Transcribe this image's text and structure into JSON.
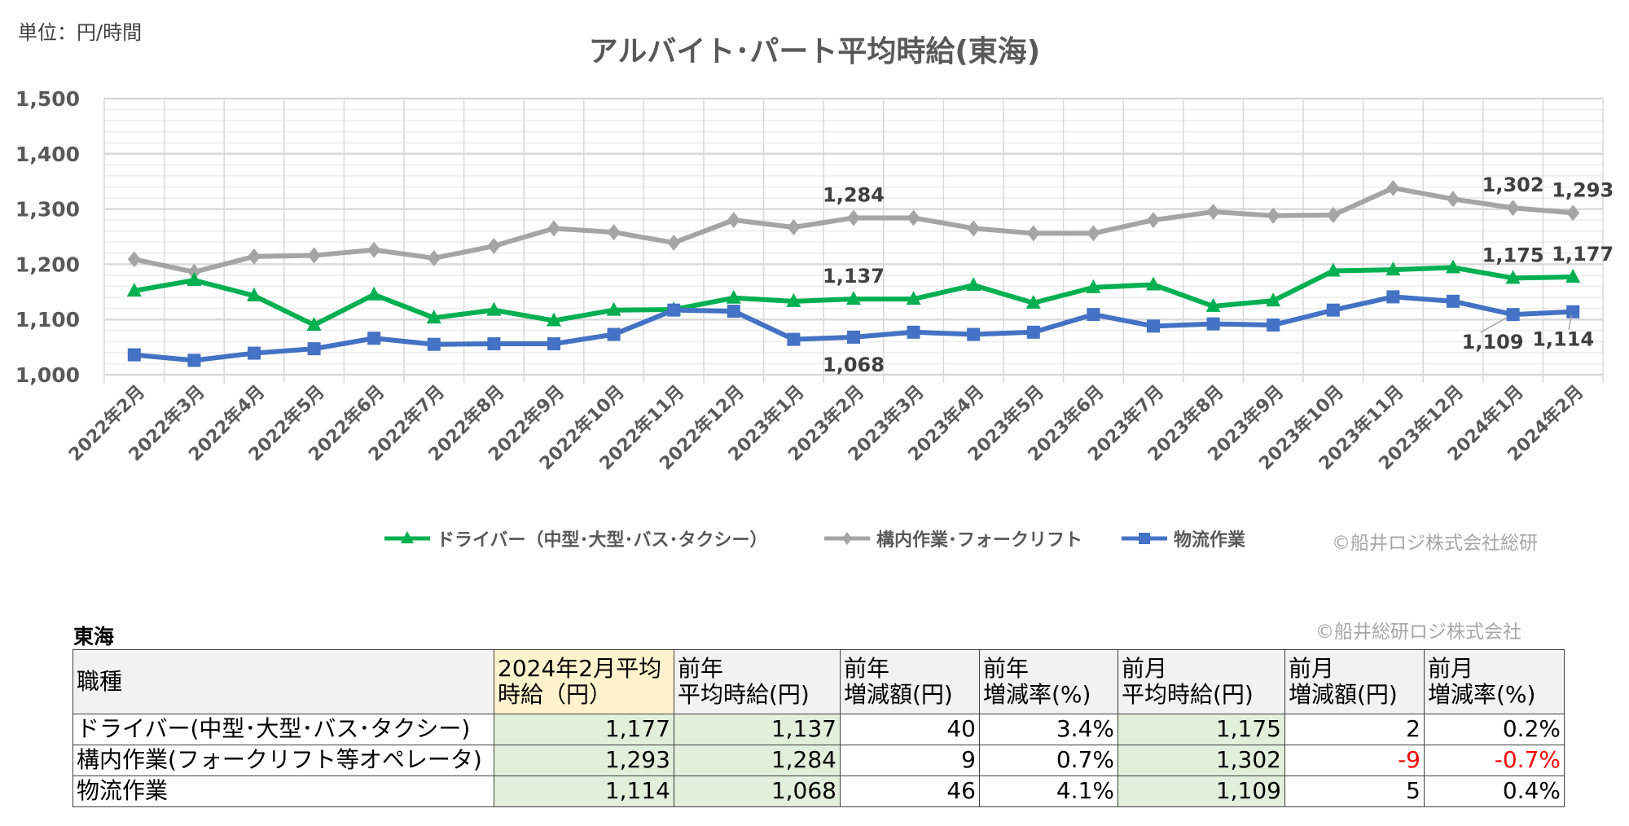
{
  "unit_label": "単位：円/時間",
  "chart_data": {
    "type": "line",
    "title": "アルバイト･パート平均時給(東海)",
    "xlabel": "",
    "ylabel": "",
    "ylim": [
      1000,
      1500
    ],
    "yticks": [
      1000,
      1100,
      1200,
      1300,
      1400,
      1500
    ],
    "ytick_labels": [
      "1,000",
      "1,100",
      "1,200",
      "1,300",
      "1,400",
      "1,500"
    ],
    "grid": true,
    "legend_position": "bottom",
    "categories": [
      "2022年2月",
      "2022年3月",
      "2022年4月",
      "2022年5月",
      "2022年6月",
      "2022年7月",
      "2022年8月",
      "2022年9月",
      "2022年10月",
      "2022年11月",
      "2022年12月",
      "2023年1月",
      "2023年2月",
      "2023年3月",
      "2023年4月",
      "2023年5月",
      "2023年6月",
      "2023年7月",
      "2023年8月",
      "2023年9月",
      "2023年10月",
      "2023年11月",
      "2023年12月",
      "2024年1月",
      "2024年2月"
    ],
    "series": [
      {
        "name": "ドライバー（中型･大型･バス･タクシー）",
        "color": "#00b050",
        "marker": "triangle",
        "values": [
          1152,
          1171,
          1143,
          1090,
          1145,
          1103,
          1117,
          1098,
          1117,
          1118,
          1139,
          1133,
          1137,
          1137,
          1162,
          1130,
          1158,
          1163,
          1124,
          1134,
          1188,
          1190,
          1194,
          1175,
          1177
        ]
      },
      {
        "name": "構内作業･フォークリフト",
        "color": "#a5a5a5",
        "marker": "diamond",
        "values": [
          1209,
          1186,
          1214,
          1216,
          1226,
          1211,
          1233,
          1265,
          1258,
          1239,
          1280,
          1267,
          1284,
          1284,
          1265,
          1256,
          1256,
          1280,
          1295,
          1288,
          1289,
          1338,
          1318,
          1302,
          1293
        ]
      },
      {
        "name": "物流作業",
        "color": "#4472c4",
        "marker": "square",
        "values": [
          1036,
          1026,
          1039,
          1047,
          1066,
          1055,
          1056,
          1056,
          1073,
          1117,
          1115,
          1064,
          1068,
          1077,
          1073,
          1077,
          1109,
          1088,
          1092,
          1090,
          1117,
          1141,
          1133,
          1109,
          1114
        ]
      }
    ],
    "data_labels": [
      {
        "series": 1,
        "category": "2023年2月",
        "text": "1,284"
      },
      {
        "series": 1,
        "category": "2024年1月",
        "text": "1,302"
      },
      {
        "series": 1,
        "category": "2024年2月",
        "text": "1,293"
      },
      {
        "series": 0,
        "category": "2023年2月",
        "text": "1,137"
      },
      {
        "series": 0,
        "category": "2024年1月",
        "text": "1,175"
      },
      {
        "series": 0,
        "category": "2024年2月",
        "text": "1,177"
      },
      {
        "series": 2,
        "category": "2023年2月",
        "text": "1,068"
      },
      {
        "series": 2,
        "category": "2024年1月",
        "text": "1,109"
      },
      {
        "series": 2,
        "category": "2024年2月",
        "text": "1,114"
      }
    ]
  },
  "legend_copyright": "©船井ロジ株式会社総研",
  "table": {
    "region": "東海",
    "copyright": "©船井総研ロジ株式会社",
    "headers": [
      "職種",
      "2024年2月平均時給（円）",
      "前年\n平均時給(円)",
      "前年\n増減額(円)",
      "前年\n増減率(%)",
      "前月\n平均時給(円)",
      "前月\n増減額(円)",
      "前月\n増減率(%)"
    ],
    "rows": [
      [
        "ドライバー(中型･大型･バス･タクシー)",
        "1,177",
        "1,137",
        "40",
        "3.4%",
        "1,175",
        "2",
        "0.2%"
      ],
      [
        "構内作業(フォークリフト等オペレータ)",
        "1,293",
        "1,284",
        "9",
        "0.7%",
        "1,302",
        "-9",
        "-0.7%"
      ],
      [
        "物流作業",
        "1,114",
        "1,068",
        "46",
        "4.1%",
        "1,109",
        "5",
        "0.4%"
      ]
    ],
    "negative_color": "#ff0000"
  }
}
